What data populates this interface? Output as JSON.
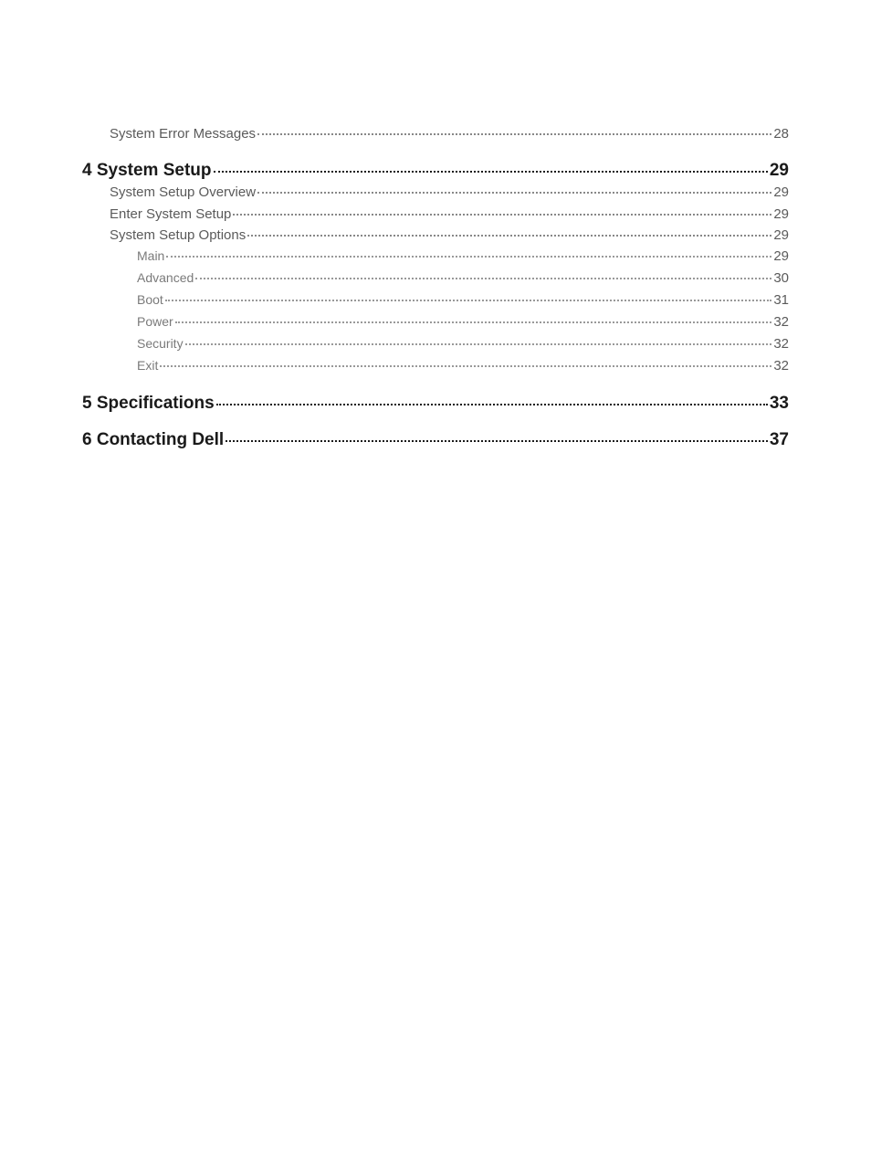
{
  "toc": [
    {
      "level": 1,
      "label": "System Error Messages",
      "page": "28"
    },
    {
      "level": 0,
      "label": "4 System Setup",
      "page": "29"
    },
    {
      "level": 1,
      "label": "System Setup Overview",
      "page": "29"
    },
    {
      "level": 1,
      "label": "Enter System Setup",
      "page": "29"
    },
    {
      "level": 1,
      "label": "System Setup Options",
      "page": "29"
    },
    {
      "level": 2,
      "label": "Main",
      "page": "29"
    },
    {
      "level": 2,
      "label": "Advanced",
      "page": "30"
    },
    {
      "level": 2,
      "label": "Boot",
      "page": "31"
    },
    {
      "level": 2,
      "label": "Power",
      "page": "32"
    },
    {
      "level": 2,
      "label": "Security",
      "page": "32"
    },
    {
      "level": 2,
      "label": "Exit",
      "page": "32"
    },
    {
      "level": 0,
      "label": "5 Specifications",
      "page": "33"
    },
    {
      "level": 0,
      "label": "6 Contacting Dell",
      "page": "37"
    }
  ],
  "style": {
    "page_bg": "#ffffff",
    "heading_color": "#1a1a1a",
    "body_color": "#5a5a5a",
    "sub_color": "#7a7a7a",
    "heading_fontsize": 19,
    "body_fontsize": 15,
    "sub_fontsize": 14
  }
}
